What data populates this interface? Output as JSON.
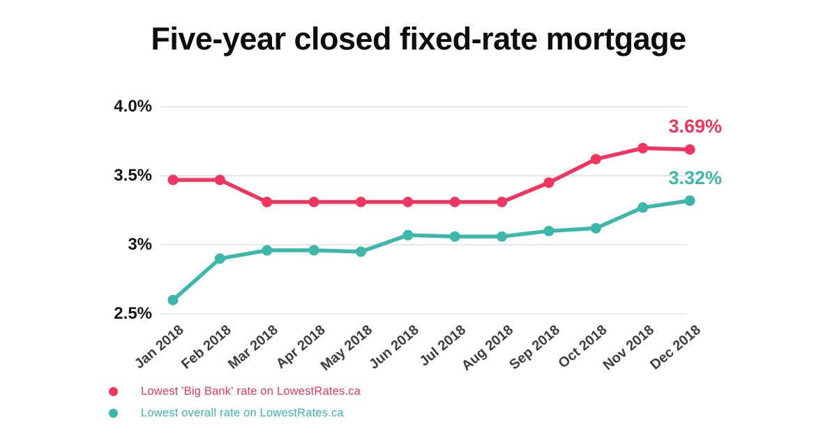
{
  "title": "Five-year closed fixed-rate mortgage",
  "colors": {
    "big_bank": "#f1355f",
    "overall": "#3cb7ac",
    "grid": "#e6e6e6",
    "title_text": "#0d0d0d",
    "y_tick_text": "#161616",
    "x_tick_text": "#3d3d3d",
    "background": "#ffffff"
  },
  "y_axis": {
    "tick_labels": [
      "4.0%",
      "3.5%",
      "3%",
      "2.5%"
    ],
    "tick_values": [
      4.0,
      3.5,
      3.0,
      2.5
    ]
  },
  "chart_data": {
    "type": "line",
    "title": "Five-year closed fixed-rate mortgage",
    "categories": [
      "Jan 2018",
      "Feb 2018",
      "Mar 2018",
      "Apr 2018",
      "May 2018",
      "Jun 2018",
      "Jul 2018",
      "Aug 2018",
      "Sep 2018",
      "Oct 2018",
      "Nov 2018",
      "Dec 2018"
    ],
    "xlabel": "",
    "ylabel": "",
    "ylim": [
      2.5,
      4.0
    ],
    "y_tick_values": [
      2.5,
      3.0,
      3.5,
      4.0
    ],
    "y_tick_labels": [
      "2.5%",
      "3%",
      "3.5%",
      "4.0%"
    ],
    "grid": "horizontal-only",
    "legend_position": "bottom-left",
    "series": [
      {
        "name": "Lowest 'Big Bank' rate on LowestRates.ca",
        "color": "#f1355f",
        "end_label": "3.69%",
        "values": [
          3.47,
          3.47,
          3.31,
          3.31,
          3.31,
          3.31,
          3.31,
          3.31,
          3.45,
          3.62,
          3.7,
          3.69
        ]
      },
      {
        "name": "Lowest overall rate on LowestRates.ca",
        "color": "#3cb7ac",
        "end_label": "3.32%",
        "values": [
          2.6,
          2.9,
          2.96,
          2.96,
          2.95,
          3.07,
          3.06,
          3.06,
          3.1,
          3.12,
          3.27,
          3.32
        ]
      }
    ]
  }
}
